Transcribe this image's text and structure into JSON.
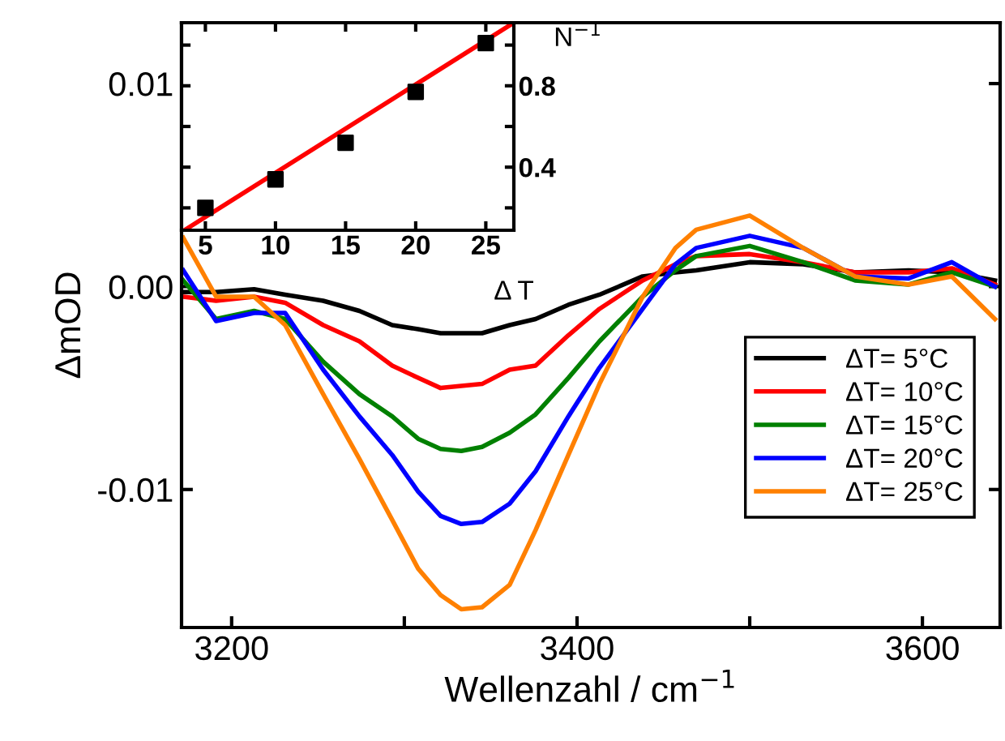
{
  "chart_data": [
    {
      "type": "line",
      "xlabel": "Wellenzahl / cm$^{−1}$",
      "ylabel": "ΔmOD",
      "legend": "lower right",
      "x": [
        3172,
        3191,
        3213,
        3231,
        3253,
        3274,
        3293,
        3308,
        3321,
        3333,
        3345,
        3361,
        3376,
        3395,
        3413,
        3438,
        3457,
        3469,
        3500,
        3531,
        3561,
        3592,
        3617,
        3642
      ],
      "xlim": [
        3171,
        3645
      ],
      "xticks": [
        3200,
        {
          "value": 3300,
          "label": null
        },
        3400,
        {
          "value": 3500,
          "label": null
        },
        3600
      ],
      "ylim": [
        -0.0168,
        0.013
      ],
      "yticks": [
        {
          "value": -0.01,
          "label": "-0.01"
        },
        {
          "value": 0,
          "label": "0.00"
        },
        {
          "value": 0.01,
          "label": "0.01"
        }
      ],
      "series": [
        {
          "name": "ΔT= 5°C",
          "color": "#000000",
          "values": [
            -0.00027,
            -0.00027,
            -0.00013,
            -0.0004,
            -0.0007,
            -0.0012,
            -0.0019,
            -0.0021,
            -0.0023,
            -0.0023,
            -0.0023,
            -0.0019,
            -0.0016,
            -0.0009,
            -0.0004,
            0.0005,
            0.0007,
            0.0008,
            0.0012,
            0.0011,
            0.0007,
            0.0008,
            0.0007,
            0.0003
          ]
        },
        {
          "name": "ΔT= 10°C",
          "color": "#ff0000",
          "values": [
            -0.0005,
            -0.0007,
            -0.0005,
            -0.0008,
            -0.0019,
            -0.0027,
            -0.0039,
            -0.0045,
            -0.005,
            -0.0049,
            -0.0048,
            -0.0041,
            -0.0039,
            -0.0024,
            -0.0011,
            0.0003,
            0.0011,
            0.0015,
            0.0016,
            0.0012,
            0.0007,
            0.0007,
            0.0009,
            0.0001
          ]
        },
        {
          "name": "ΔT= 15°C",
          "color": "#008000",
          "values": [
            0.0003,
            -0.0016,
            -0.0012,
            -0.0016,
            -0.0037,
            -0.0053,
            -0.0064,
            -0.0075,
            -0.008,
            -0.0081,
            -0.0079,
            -0.0072,
            -0.0063,
            -0.0045,
            -0.0027,
            -0.0005,
            0.0008,
            0.0015,
            0.002,
            0.0012,
            0.0003,
            0.0001,
            0.0007,
            0
          ]
        },
        {
          "name": "ΔT= 20°C",
          "color": "#0000ff",
          "values": [
            0.0008,
            -0.0017,
            -0.0013,
            -0.0013,
            -0.0041,
            -0.0064,
            -0.0083,
            -0.0101,
            -0.0113,
            -0.0117,
            -0.0116,
            -0.0107,
            -0.0091,
            -0.0064,
            -0.004,
            -0.0011,
            0.0011,
            0.0019,
            0.0025,
            0.0019,
            0.0005,
            0.0004,
            0.0012,
            0
          ]
        },
        {
          "name": "ΔT= 25°C",
          "color": "#ff8000",
          "values": [
            0.0024,
            -0.0005,
            -0.0005,
            -0.0019,
            -0.0053,
            -0.0085,
            -0.0115,
            -0.0139,
            -0.0152,
            -0.0159,
            -0.0158,
            -0.0147,
            -0.012,
            -0.0083,
            -0.0048,
            -0.0005,
            0.0019,
            0.0028,
            0.0035,
            0.0019,
            0.0005,
            0.0001,
            0.0005,
            -0.0016
          ]
        }
      ]
    },
    {
      "type": "scatter",
      "xlabel": "Δ T",
      "ylabel": "N$^{−1}$",
      "marker": "square",
      "x": [
        5,
        10,
        15,
        20,
        25
      ],
      "xlim": [
        3.3,
        27
      ],
      "xticks": [
        5,
        10,
        15,
        20,
        25
      ],
      "ylim": [
        0.09,
        1.11
      ],
      "yticks": [
        {
          "value": 0.2,
          "label": null
        },
        0.4,
        {
          "value": 0.6,
          "label": null
        },
        0.8,
        {
          "value": 1.0,
          "label": null
        }
      ],
      "series": [
        {
          "color": "#000000",
          "values": [
            0.2,
            0.34,
            0.52,
            0.77,
            1.01
          ]
        },
        {
          "type": "line",
          "color": "#ff0000",
          "marker": "none",
          "x": [
            3.5,
            27
          ],
          "values": [
            0.09,
            1.11
          ]
        }
      ]
    }
  ]
}
